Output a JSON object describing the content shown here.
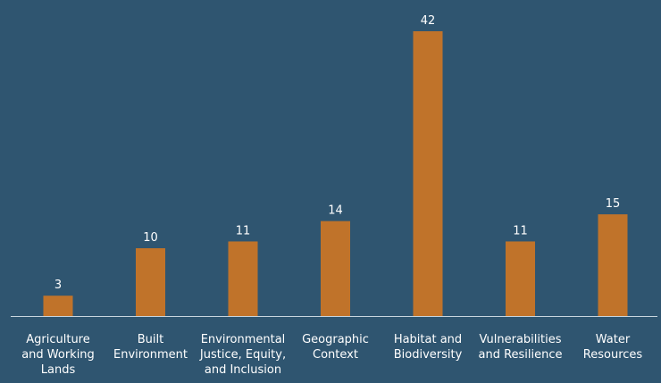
{
  "chart_data": {
    "type": "bar",
    "categories": [
      [
        "Agriculture",
        "and Working",
        "Lands"
      ],
      [
        "Built",
        "Environment"
      ],
      [
        "Environmental",
        "Justice, Equity,",
        "and Inclusion"
      ],
      [
        "Geographic",
        "Context"
      ],
      [
        "Habitat and",
        "Biodiversity"
      ],
      [
        "Vulnerabilities",
        "and Resilience"
      ],
      [
        "Water",
        "Resources"
      ]
    ],
    "values": [
      3,
      10,
      11,
      14,
      42,
      11,
      15
    ],
    "data_labels": [
      "3",
      "10",
      "11",
      "14",
      "42",
      "11",
      "15"
    ],
    "ylim": [
      0,
      42
    ],
    "grid": false,
    "legend": "none",
    "colors": {
      "background": "#2f5570",
      "bar": "#c0732a",
      "axis": "#c9d6df",
      "text": "#ffffff"
    }
  }
}
